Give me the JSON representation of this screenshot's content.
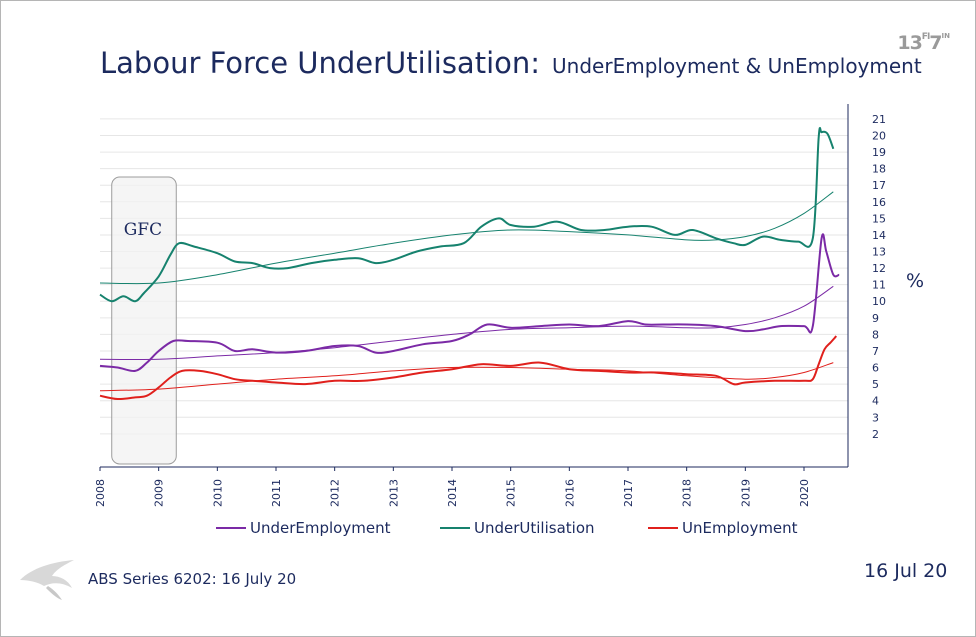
{
  "header": {
    "logo_text": "13",
    "logo_mark": "FI",
    "logo_text2": "7",
    "logo_sup": "IN",
    "title": "Labour Force UnderUtilisation:",
    "subtitle": "UnderEmployment & UnEmployment"
  },
  "footer": {
    "source": "ABS Series 6202:  16 July 20",
    "date": "16 Jul 20"
  },
  "colors": {
    "underemployment": "#7b2aa6",
    "underutilisation": "#16826e",
    "unemployment": "#e0201c",
    "grid": "#e6e6e6",
    "text": "#1c2a5e"
  },
  "chart_data": {
    "type": "line",
    "title": "Labour Force UnderUtilisation: UnderEmployment & UnEmployment",
    "xlabel": "",
    "ylabel": "%",
    "xlim": [
      2008.0,
      2020.75
    ],
    "ylim": [
      0,
      22
    ],
    "x_ticks": [
      "2008",
      "2009",
      "2010",
      "2011",
      "2012",
      "2013",
      "2014",
      "2015",
      "2016",
      "2017",
      "2018",
      "2019",
      "2020"
    ],
    "y_ticks": [
      2,
      3,
      4,
      5,
      6,
      7,
      8,
      9,
      10,
      11,
      12,
      13,
      14,
      15,
      16,
      17,
      18,
      19,
      20,
      21
    ],
    "grid": true,
    "legend_position": "bottom",
    "annotations": [
      {
        "label": "GFC",
        "x_start": 2008.2,
        "x_end": 2009.3
      }
    ],
    "series": [
      {
        "name": "UnderEmployment",
        "x": [
          2008.0,
          2008.3,
          2008.6,
          2008.8,
          2009.0,
          2009.25,
          2009.5,
          2010.0,
          2010.3,
          2010.6,
          2011.0,
          2011.5,
          2012.0,
          2012.4,
          2012.7,
          2013.0,
          2013.5,
          2014.0,
          2014.3,
          2014.6,
          2015.0,
          2015.5,
          2016.0,
          2016.5,
          2017.0,
          2017.3,
          2017.6,
          2018.0,
          2018.5,
          2019.0,
          2019.3,
          2019.6,
          2020.0,
          2020.15,
          2020.3,
          2020.38,
          2020.5,
          2020.6
        ],
        "y": [
          6.1,
          6.0,
          5.8,
          6.3,
          7.0,
          7.6,
          7.6,
          7.5,
          7.0,
          7.1,
          6.9,
          7.0,
          7.3,
          7.3,
          6.9,
          7.0,
          7.4,
          7.6,
          8.0,
          8.6,
          8.4,
          8.5,
          8.6,
          8.5,
          8.8,
          8.6,
          8.6,
          8.6,
          8.5,
          8.2,
          8.3,
          8.5,
          8.5,
          8.5,
          13.8,
          13.0,
          11.6,
          11.6
        ]
      },
      {
        "name": "UnderUtilisation",
        "x": [
          2008.0,
          2008.2,
          2008.4,
          2008.6,
          2008.75,
          2009.0,
          2009.2,
          2009.35,
          2009.6,
          2010.0,
          2010.3,
          2010.6,
          2010.9,
          2011.2,
          2011.6,
          2012.0,
          2012.4,
          2012.7,
          2013.0,
          2013.4,
          2013.8,
          2014.2,
          2014.5,
          2014.8,
          2015.0,
          2015.4,
          2015.8,
          2016.2,
          2016.6,
          2017.0,
          2017.4,
          2017.8,
          2018.1,
          2018.5,
          2018.8,
          2019.0,
          2019.3,
          2019.6,
          2019.9,
          2020.15,
          2020.25,
          2020.3,
          2020.4,
          2020.5
        ],
        "y": [
          10.4,
          10.0,
          10.3,
          10.0,
          10.5,
          11.5,
          12.8,
          13.5,
          13.3,
          12.9,
          12.4,
          12.3,
          12.0,
          12.0,
          12.3,
          12.5,
          12.6,
          12.3,
          12.5,
          13.0,
          13.3,
          13.5,
          14.5,
          15.0,
          14.6,
          14.5,
          14.8,
          14.3,
          14.3,
          14.5,
          14.5,
          14.0,
          14.3,
          13.8,
          13.5,
          13.4,
          13.9,
          13.7,
          13.6,
          13.8,
          19.9,
          20.2,
          20.1,
          19.2
        ]
      },
      {
        "name": "UnEmployment",
        "x": [
          2008.0,
          2008.3,
          2008.6,
          2008.8,
          2009.0,
          2009.2,
          2009.4,
          2009.7,
          2010.0,
          2010.3,
          2010.6,
          2011.0,
          2011.5,
          2012.0,
          2012.5,
          2013.0,
          2013.5,
          2014.0,
          2014.5,
          2015.0,
          2015.5,
          2016.0,
          2016.5,
          2017.0,
          2017.5,
          2018.0,
          2018.5,
          2018.8,
          2019.0,
          2019.5,
          2020.0,
          2020.15,
          2020.25,
          2020.35,
          2020.45,
          2020.55
        ],
        "y": [
          4.3,
          4.1,
          4.2,
          4.3,
          4.8,
          5.4,
          5.8,
          5.8,
          5.6,
          5.3,
          5.2,
          5.1,
          5.0,
          5.2,
          5.2,
          5.4,
          5.7,
          5.9,
          6.2,
          6.1,
          6.3,
          5.9,
          5.8,
          5.7,
          5.7,
          5.6,
          5.5,
          5.0,
          5.1,
          5.2,
          5.2,
          5.3,
          6.2,
          7.1,
          7.5,
          7.9
        ]
      }
    ],
    "trend_lines": [
      {
        "name": "UnderEmployment trend",
        "x": [
          2008.0,
          2009.0,
          2010.0,
          2011.0,
          2012.0,
          2013.0,
          2014.0,
          2015.0,
          2016.0,
          2017.0,
          2018.0,
          2018.5,
          2019.0,
          2019.5,
          2020.0,
          2020.5
        ],
        "y": [
          6.5,
          6.5,
          6.7,
          6.9,
          7.2,
          7.6,
          8.0,
          8.3,
          8.4,
          8.5,
          8.4,
          8.4,
          8.6,
          9.0,
          9.7,
          10.9
        ]
      },
      {
        "name": "UnderUtilisation trend",
        "x": [
          2008.0,
          2009.0,
          2010.0,
          2011.0,
          2012.0,
          2013.0,
          2014.0,
          2015.0,
          2016.0,
          2017.0,
          2018.0,
          2018.5,
          2019.0,
          2019.5,
          2020.0,
          2020.5
        ],
        "y": [
          11.1,
          11.1,
          11.6,
          12.3,
          12.9,
          13.5,
          14.0,
          14.3,
          14.2,
          14.0,
          13.7,
          13.7,
          13.9,
          14.4,
          15.3,
          16.6
        ]
      },
      {
        "name": "UnEmployment trend",
        "x": [
          2008.0,
          2009.0,
          2010.0,
          2011.0,
          2012.0,
          2013.0,
          2014.0,
          2015.0,
          2016.0,
          2017.0,
          2018.0,
          2019.0,
          2019.5,
          2020.0,
          2020.5
        ],
        "y": [
          4.6,
          4.7,
          5.0,
          5.3,
          5.5,
          5.8,
          6.0,
          6.0,
          5.9,
          5.8,
          5.5,
          5.3,
          5.4,
          5.7,
          6.3
        ]
      }
    ]
  }
}
